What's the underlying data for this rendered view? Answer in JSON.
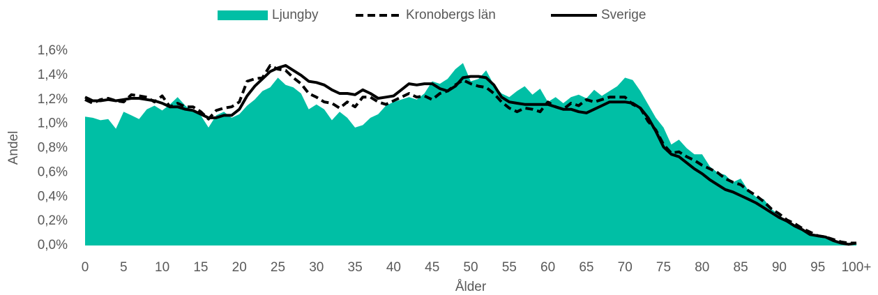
{
  "chart_data": {
    "type": "line",
    "x_label": "Ålder",
    "y_label": "Andel",
    "categories": [
      "0",
      null,
      null,
      null,
      null,
      "5",
      null,
      null,
      null,
      null,
      "10",
      null,
      null,
      null,
      null,
      "15",
      null,
      null,
      null,
      null,
      "20",
      null,
      null,
      null,
      null,
      "25",
      null,
      null,
      null,
      null,
      "30",
      null,
      null,
      null,
      null,
      "35",
      null,
      null,
      null,
      null,
      "40",
      null,
      null,
      null,
      null,
      "45",
      null,
      null,
      null,
      null,
      "50",
      null,
      null,
      null,
      null,
      "55",
      null,
      null,
      null,
      null,
      "60",
      null,
      null,
      null,
      null,
      "65",
      null,
      null,
      null,
      null,
      "70",
      null,
      null,
      null,
      null,
      "75",
      null,
      null,
      null,
      null,
      "80",
      null,
      null,
      null,
      null,
      "85",
      null,
      null,
      null,
      null,
      "90",
      null,
      null,
      null,
      null,
      "95",
      null,
      null,
      null,
      null,
      "100+"
    ],
    "ylim": [
      0,
      1.6
    ],
    "yticks": [
      {
        "value": 0,
        "label": "0,0%"
      },
      {
        "value": 0.2,
        "label": "0,2%"
      },
      {
        "value": 0.4,
        "label": "0,4%"
      },
      {
        "value": 0.6,
        "label": "0,6%"
      },
      {
        "value": 0.8,
        "label": "0,8%"
      },
      {
        "value": 1.0,
        "label": "1,0%"
      },
      {
        "value": 1.2,
        "label": "1,2%"
      },
      {
        "value": 1.4,
        "label": "1,4%"
      },
      {
        "value": 1.6,
        "label": "1,6%"
      }
    ],
    "grid": false,
    "legend": "top",
    "series": [
      {
        "name": "Ljungby",
        "color": "#00bfa5",
        "style": "area",
        "values": [
          1.06,
          1.05,
          1.03,
          1.04,
          0.96,
          1.1,
          1.07,
          1.04,
          1.12,
          1.15,
          1.11,
          1.16,
          1.22,
          1.15,
          1.1,
          1.07,
          0.97,
          1.07,
          1.1,
          1.05,
          1.08,
          1.15,
          1.2,
          1.27,
          1.3,
          1.38,
          1.32,
          1.3,
          1.25,
          1.12,
          1.16,
          1.12,
          1.03,
          1.1,
          1.05,
          0.97,
          0.99,
          1.05,
          1.08,
          1.15,
          1.18,
          1.2,
          1.22,
          1.2,
          1.25,
          1.35,
          1.33,
          1.37,
          1.45,
          1.5,
          1.35,
          1.37,
          1.44,
          1.32,
          1.25,
          1.22,
          1.27,
          1.31,
          1.24,
          1.29,
          1.18,
          1.22,
          1.17,
          1.22,
          1.24,
          1.21,
          1.28,
          1.23,
          1.27,
          1.31,
          1.38,
          1.36,
          1.27,
          1.16,
          1.05,
          0.97,
          0.83,
          0.87,
          0.8,
          0.75,
          0.75,
          0.65,
          0.6,
          0.58,
          0.52,
          0.55,
          0.45,
          0.4,
          0.38,
          0.3,
          0.25,
          0.2,
          0.17,
          0.13,
          0.1,
          0.08,
          0.06,
          0.04,
          0.03,
          0.02,
          0.03
        ]
      },
      {
        "name": "Kronobergs län",
        "color": "#000000",
        "style": "dashed",
        "values": [
          1.2,
          1.17,
          1.2,
          1.21,
          1.19,
          1.18,
          1.24,
          1.23,
          1.22,
          1.18,
          1.23,
          1.14,
          1.17,
          1.14,
          1.14,
          1.1,
          1.04,
          1.11,
          1.13,
          1.14,
          1.18,
          1.35,
          1.37,
          1.38,
          1.48,
          1.45,
          1.44,
          1.38,
          1.33,
          1.25,
          1.22,
          1.18,
          1.17,
          1.13,
          1.18,
          1.14,
          1.22,
          1.22,
          1.18,
          1.16,
          1.19,
          1.22,
          1.25,
          1.22,
          1.23,
          1.2,
          1.25,
          1.27,
          1.32,
          1.36,
          1.33,
          1.31,
          1.3,
          1.25,
          1.18,
          1.13,
          1.1,
          1.13,
          1.12,
          1.1,
          1.18,
          1.14,
          1.12,
          1.17,
          1.15,
          1.2,
          1.18,
          1.2,
          1.22,
          1.22,
          1.22,
          1.16,
          1.13,
          1.02,
          0.95,
          0.83,
          0.76,
          0.77,
          0.73,
          0.7,
          0.66,
          0.63,
          0.6,
          0.55,
          0.52,
          0.5,
          0.45,
          0.41,
          0.36,
          0.3,
          0.26,
          0.21,
          0.18,
          0.14,
          0.11,
          0.08,
          0.07,
          0.05,
          0.03,
          0.02,
          0.02
        ]
      },
      {
        "name": "Sverige",
        "color": "#000000",
        "style": "solid",
        "values": [
          1.22,
          1.19,
          1.19,
          1.2,
          1.19,
          1.2,
          1.21,
          1.21,
          1.2,
          1.19,
          1.17,
          1.14,
          1.14,
          1.12,
          1.11,
          1.08,
          1.05,
          1.05,
          1.07,
          1.07,
          1.12,
          1.23,
          1.31,
          1.37,
          1.43,
          1.46,
          1.48,
          1.44,
          1.4,
          1.35,
          1.34,
          1.32,
          1.28,
          1.25,
          1.25,
          1.24,
          1.28,
          1.25,
          1.21,
          1.22,
          1.23,
          1.28,
          1.33,
          1.32,
          1.33,
          1.33,
          1.29,
          1.27,
          1.31,
          1.38,
          1.39,
          1.39,
          1.38,
          1.32,
          1.22,
          1.18,
          1.17,
          1.16,
          1.16,
          1.16,
          1.16,
          1.14,
          1.12,
          1.12,
          1.1,
          1.09,
          1.12,
          1.15,
          1.18,
          1.18,
          1.18,
          1.17,
          1.13,
          1.05,
          0.94,
          0.81,
          0.75,
          0.73,
          0.68,
          0.63,
          0.59,
          0.54,
          0.5,
          0.46,
          0.44,
          0.41,
          0.38,
          0.35,
          0.31,
          0.27,
          0.23,
          0.2,
          0.16,
          0.13,
          0.09,
          0.08,
          0.07,
          0.04,
          0.02,
          0.01,
          0.02
        ]
      }
    ]
  }
}
